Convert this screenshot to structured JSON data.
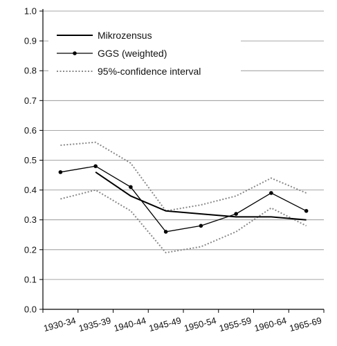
{
  "chart_data": {
    "type": "line",
    "title": "",
    "xlabel": "",
    "ylabel": "",
    "categories": [
      "1930-34",
      "1935-39",
      "1940-44",
      "1945-49",
      "1950-54",
      "1955-59",
      "1960-64",
      "1965-69"
    ],
    "ylim": [
      0.0,
      1.0
    ],
    "yticks": [
      "0.0",
      "0.1",
      "0.2",
      "0.3",
      "0.4",
      "0.5",
      "0.6",
      "0.7",
      "0.8",
      "0.9",
      "1.0"
    ],
    "grid": "horizontal lines at y ticks (partially hidden behind legend)",
    "legend_position": "top-left",
    "series": [
      {
        "name": "Mikrozensus",
        "style": "solid",
        "color": "#000000",
        "values": [
          null,
          0.46,
          0.38,
          0.33,
          0.32,
          0.31,
          0.31,
          0.3
        ]
      },
      {
        "name": "GGS (weighted)",
        "style": "solid-markers",
        "color": "#000000",
        "values": [
          0.46,
          0.48,
          0.41,
          0.26,
          0.28,
          0.32,
          0.39,
          0.33
        ]
      },
      {
        "name": "95%-confidence interval",
        "style": "dotted",
        "color": "#888888",
        "upper": [
          0.55,
          0.56,
          0.49,
          0.33,
          0.35,
          0.38,
          0.44,
          0.39
        ],
        "lower": [
          0.37,
          0.4,
          0.33,
          0.19,
          0.21,
          0.26,
          0.34,
          0.28
        ]
      }
    ]
  }
}
